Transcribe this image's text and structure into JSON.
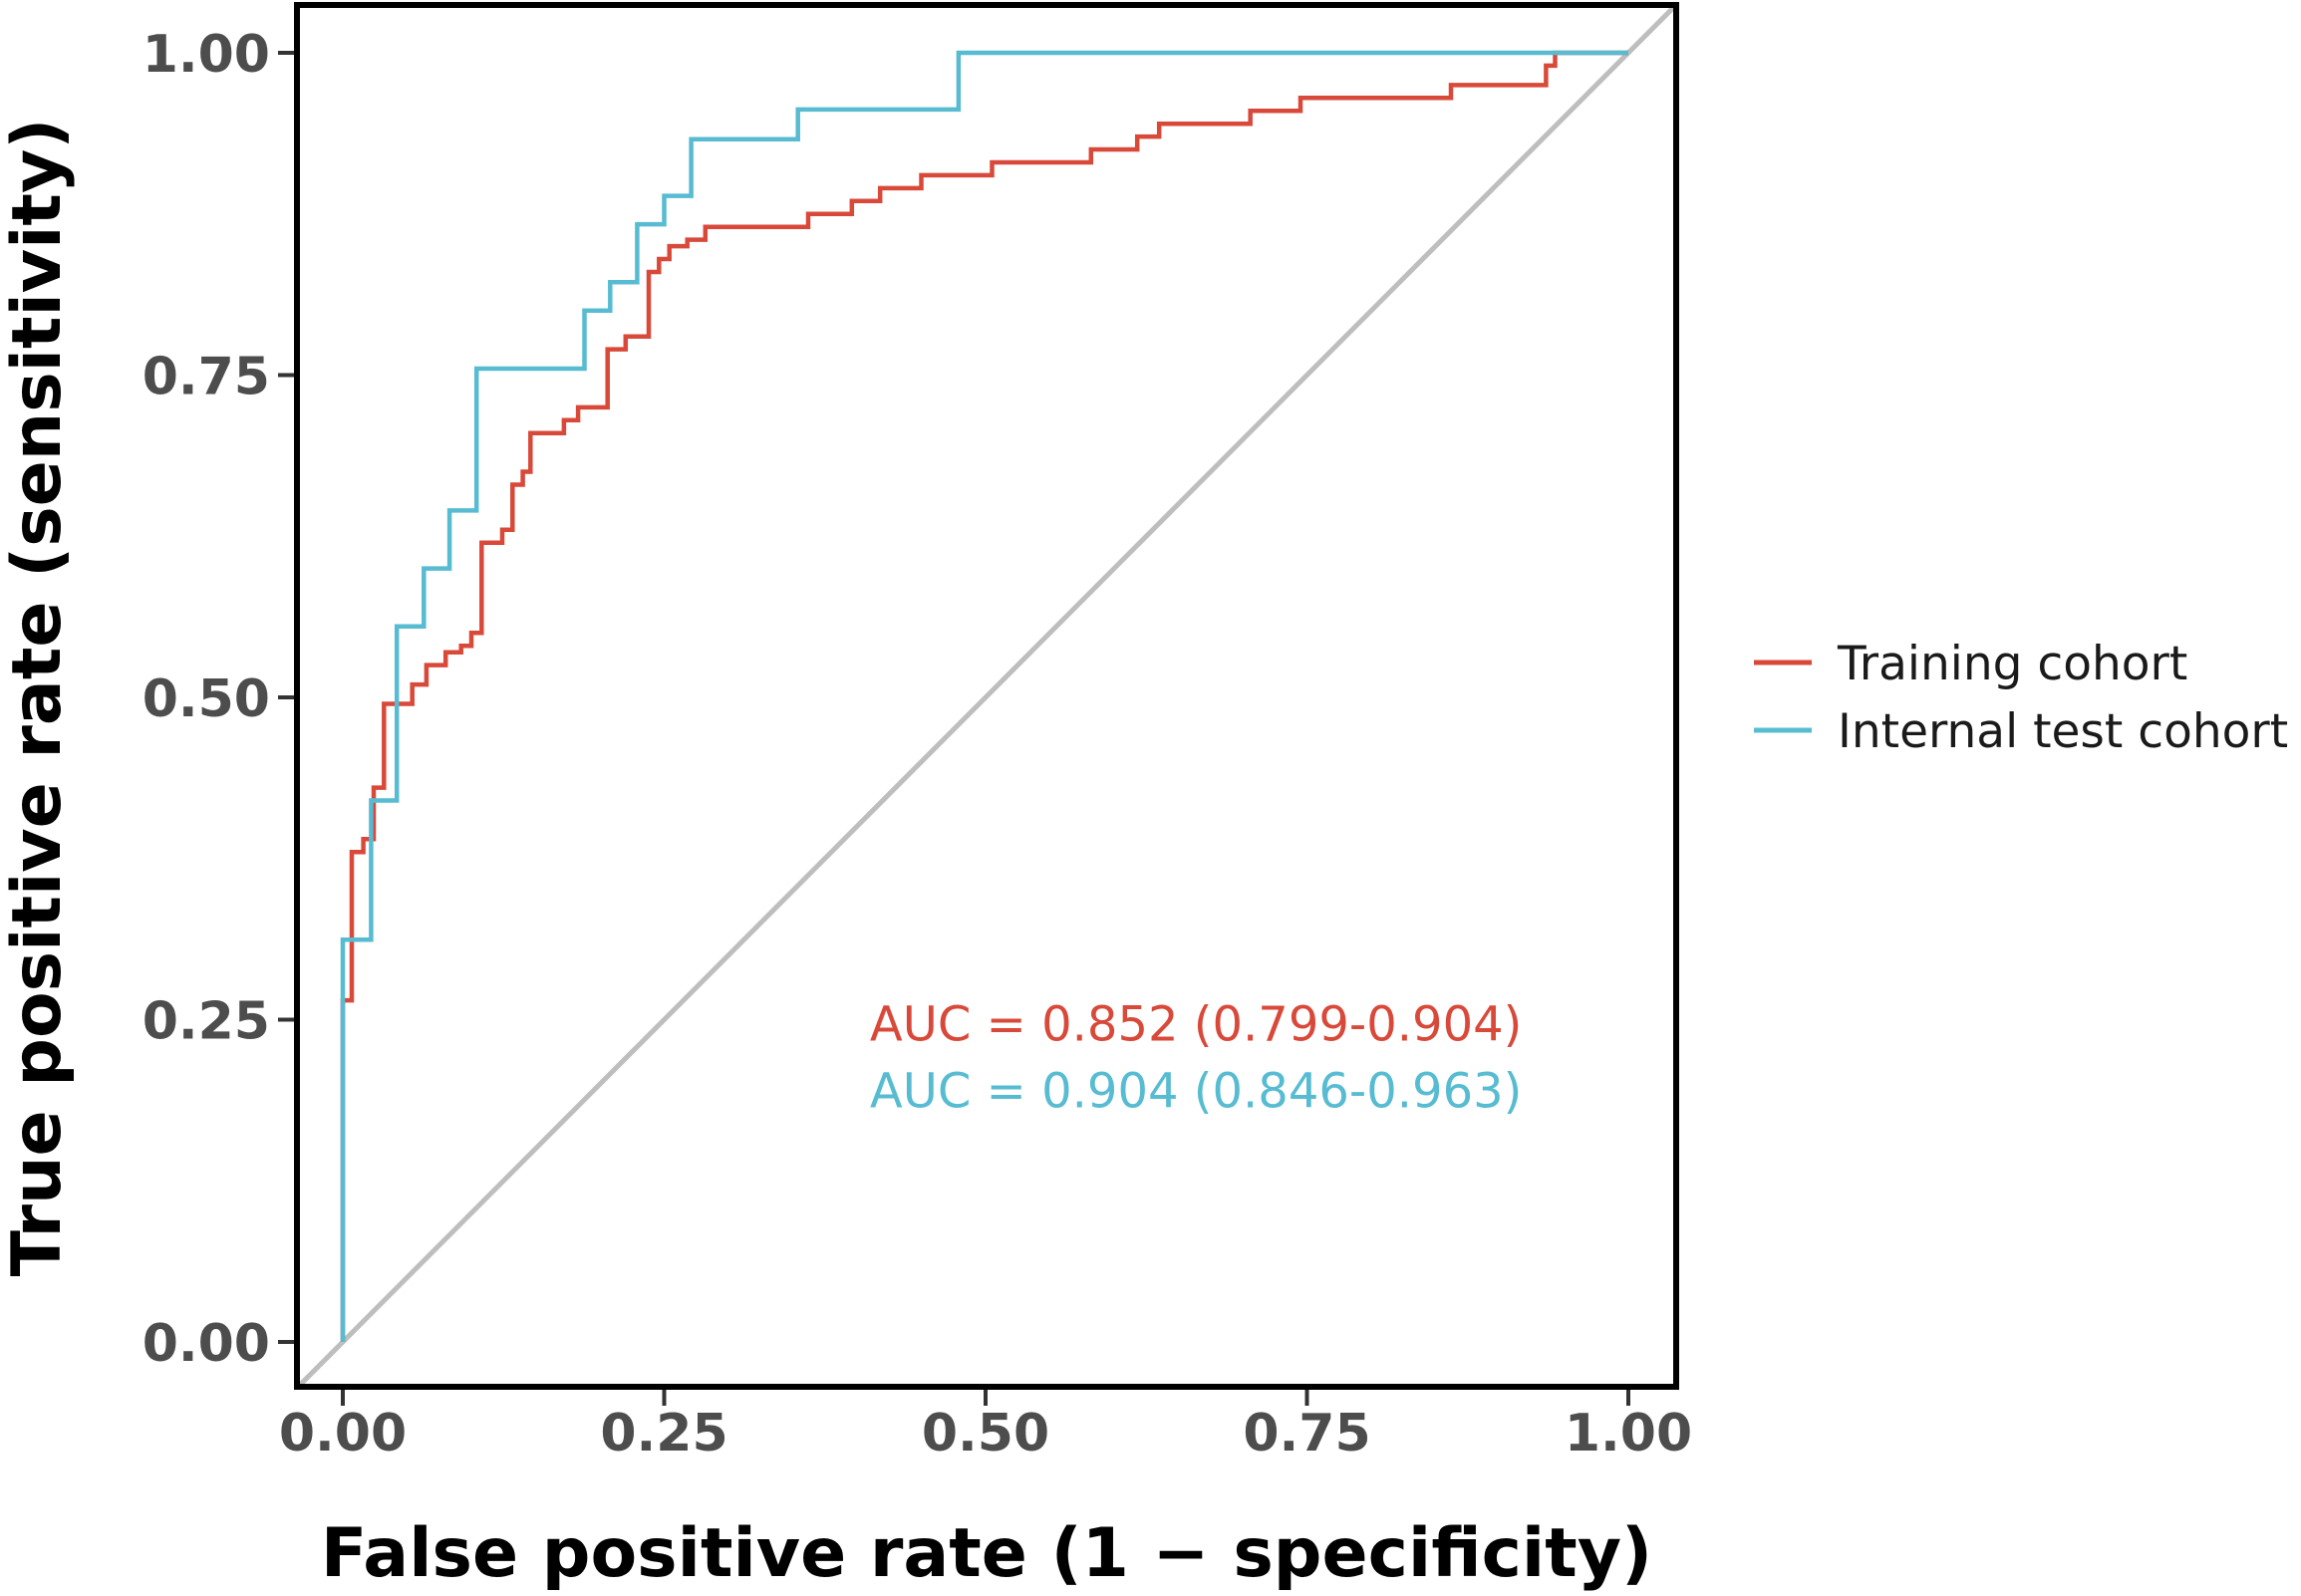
{
  "chart_data": {
    "type": "line",
    "title": "",
    "xlabel": "False positive rate (1 − specificity)",
    "ylabel": "True positive rate (sensitivity)",
    "xlim": [
      0,
      1
    ],
    "ylim": [
      0,
      1
    ],
    "x_ticks": [
      0,
      0.25,
      0.5,
      0.75,
      1
    ],
    "x_tick_labels": [
      "0.00",
      "0.25",
      "0.50",
      "0.75",
      "1.00"
    ],
    "y_ticks": [
      0,
      0.25,
      0.5,
      0.75,
      1
    ],
    "y_tick_labels": [
      "0.00",
      "0.25",
      "0.50",
      "0.75",
      "1.00"
    ],
    "grid": false,
    "legend_position": "right",
    "reference_line": {
      "x": [
        0,
        1
      ],
      "y": [
        0,
        1
      ],
      "color": "#bebebe"
    },
    "series": [
      {
        "name": "Training cohort",
        "color": "#d9493a",
        "points": [
          [
            0.0,
            0.0
          ],
          [
            0.0,
            0.265
          ],
          [
            0.007,
            0.265
          ],
          [
            0.007,
            0.38
          ],
          [
            0.016,
            0.38
          ],
          [
            0.016,
            0.39
          ],
          [
            0.024,
            0.39
          ],
          [
            0.024,
            0.43
          ],
          [
            0.032,
            0.43
          ],
          [
            0.032,
            0.495
          ],
          [
            0.054,
            0.495
          ],
          [
            0.054,
            0.51
          ],
          [
            0.065,
            0.51
          ],
          [
            0.065,
            0.525
          ],
          [
            0.08,
            0.525
          ],
          [
            0.08,
            0.535
          ],
          [
            0.092,
            0.535
          ],
          [
            0.092,
            0.54
          ],
          [
            0.1,
            0.54
          ],
          [
            0.1,
            0.55
          ],
          [
            0.108,
            0.55
          ],
          [
            0.108,
            0.62
          ],
          [
            0.124,
            0.62
          ],
          [
            0.124,
            0.63
          ],
          [
            0.132,
            0.63
          ],
          [
            0.132,
            0.665
          ],
          [
            0.14,
            0.665
          ],
          [
            0.14,
            0.675
          ],
          [
            0.146,
            0.675
          ],
          [
            0.146,
            0.705
          ],
          [
            0.172,
            0.705
          ],
          [
            0.172,
            0.715
          ],
          [
            0.183,
            0.715
          ],
          [
            0.183,
            0.725
          ],
          [
            0.206,
            0.725
          ],
          [
            0.206,
            0.77
          ],
          [
            0.22,
            0.77
          ],
          [
            0.22,
            0.78
          ],
          [
            0.238,
            0.78
          ],
          [
            0.238,
            0.83
          ],
          [
            0.246,
            0.83
          ],
          [
            0.246,
            0.84
          ],
          [
            0.254,
            0.84
          ],
          [
            0.254,
            0.85
          ],
          [
            0.268,
            0.85
          ],
          [
            0.268,
            0.855
          ],
          [
            0.282,
            0.855
          ],
          [
            0.282,
            0.865
          ],
          [
            0.362,
            0.865
          ],
          [
            0.362,
            0.875
          ],
          [
            0.396,
            0.875
          ],
          [
            0.396,
            0.885
          ],
          [
            0.418,
            0.885
          ],
          [
            0.418,
            0.895
          ],
          [
            0.45,
            0.895
          ],
          [
            0.45,
            0.905
          ],
          [
            0.505,
            0.905
          ],
          [
            0.505,
            0.915
          ],
          [
            0.582,
            0.915
          ],
          [
            0.582,
            0.925
          ],
          [
            0.618,
            0.925
          ],
          [
            0.618,
            0.935
          ],
          [
            0.635,
            0.935
          ],
          [
            0.635,
            0.945
          ],
          [
            0.706,
            0.945
          ],
          [
            0.706,
            0.955
          ],
          [
            0.745,
            0.955
          ],
          [
            0.745,
            0.965
          ],
          [
            0.862,
            0.965
          ],
          [
            0.862,
            0.975
          ],
          [
            0.936,
            0.975
          ],
          [
            0.936,
            0.99
          ],
          [
            0.943,
            0.99
          ],
          [
            0.943,
            1.0
          ],
          [
            1.0,
            1.0
          ]
        ]
      },
      {
        "name": "Internal test cohort",
        "color": "#57bcd2",
        "points": [
          [
            0.0,
            0.0
          ],
          [
            0.0,
            0.312
          ],
          [
            0.022,
            0.312
          ],
          [
            0.022,
            0.42
          ],
          [
            0.042,
            0.42
          ],
          [
            0.042,
            0.555
          ],
          [
            0.063,
            0.555
          ],
          [
            0.063,
            0.6
          ],
          [
            0.083,
            0.6
          ],
          [
            0.083,
            0.645
          ],
          [
            0.104,
            0.645
          ],
          [
            0.104,
            0.755
          ],
          [
            0.188,
            0.755
          ],
          [
            0.188,
            0.8
          ],
          [
            0.208,
            0.8
          ],
          [
            0.208,
            0.822
          ],
          [
            0.229,
            0.822
          ],
          [
            0.229,
            0.867
          ],
          [
            0.25,
            0.867
          ],
          [
            0.25,
            0.889
          ],
          [
            0.271,
            0.889
          ],
          [
            0.271,
            0.933
          ],
          [
            0.354,
            0.933
          ],
          [
            0.354,
            0.956
          ],
          [
            0.479,
            0.956
          ],
          [
            0.479,
            1.0
          ],
          [
            1.0,
            1.0
          ]
        ]
      }
    ],
    "annotations": [
      {
        "text": "AUC = 0.852 (0.799-0.904)",
        "color": "#d9493a",
        "x": 0.41,
        "y": 0.247
      },
      {
        "text": "AUC = 0.904 (0.846-0.963)",
        "color": "#57bcd2",
        "x": 0.41,
        "y": 0.195
      }
    ]
  }
}
